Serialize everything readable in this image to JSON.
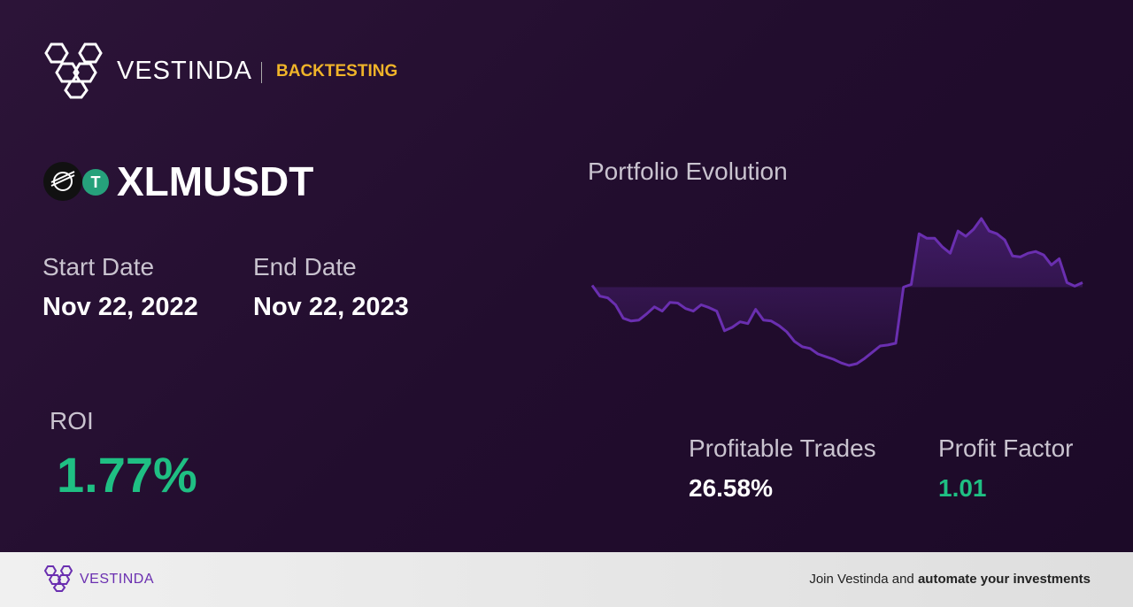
{
  "header": {
    "brand": "VESTINDA",
    "section": "BACKTESTING"
  },
  "pair": "XLMUSDT",
  "start_date": {
    "label": "Start Date",
    "value": "Nov 22, 2022"
  },
  "end_date": {
    "label": "End Date",
    "value": "Nov 22, 2023"
  },
  "roi": {
    "label": "ROI",
    "value": "1.77%"
  },
  "profitable_trades": {
    "label": "Profitable Trades",
    "value": "26.58%"
  },
  "profit_factor": {
    "label": "Profit Factor",
    "value": "1.01"
  },
  "chart_data": {
    "type": "line",
    "title": "Portfolio Evolution",
    "color": "#6a2fb0",
    "values": [
      0.7,
      -3.6,
      -4.3,
      -7.1,
      -12.5,
      -13.6,
      -13.2,
      -10.7,
      -7.9,
      -9.6,
      -6.1,
      -6.4,
      -8.6,
      -9.6,
      -7.1,
      -8.2,
      -9.6,
      -17.5,
      -16.1,
      -13.9,
      -14.6,
      -8.9,
      -13.2,
      -13.6,
      -15.4,
      -17.9,
      -21.8,
      -23.9,
      -24.6,
      -26.8,
      -27.9,
      -28.9,
      -30.4,
      -31.4,
      -30.7,
      -28.6,
      -26.1,
      -23.6,
      -23.2,
      -22.5,
      0,
      1.1,
      21.4,
      19.6,
      19.6,
      16.1,
      13.6,
      22.5,
      20.4,
      23.2,
      27.5,
      22.5,
      21.4,
      18.9,
      12.5,
      12.1,
      13.6,
      14.3,
      12.9,
      8.9,
      11.4,
      1.8,
      0.4,
      1.8
    ]
  },
  "footer": {
    "brand": "VESTINDA",
    "cta_plain": "Join Vestinda and",
    "cta_bold": "automate your investments"
  }
}
